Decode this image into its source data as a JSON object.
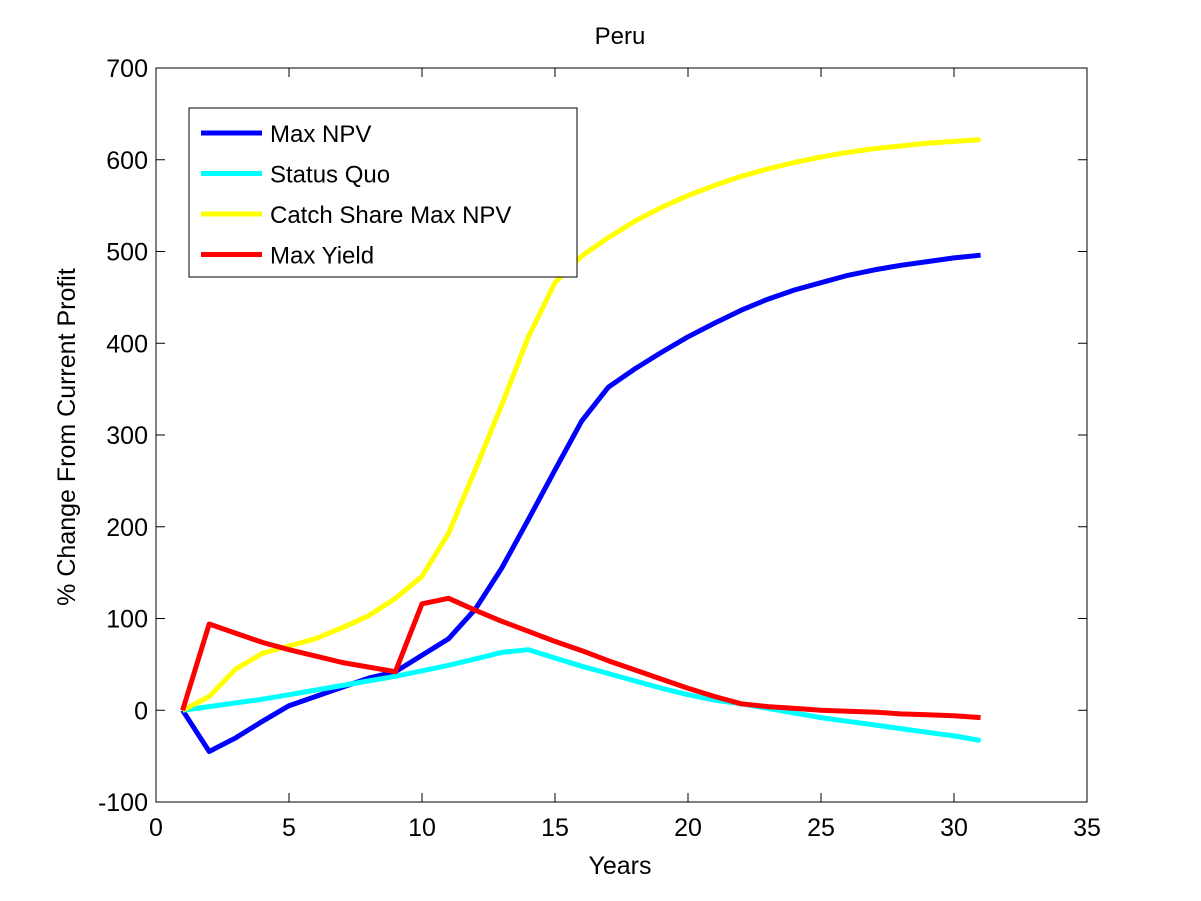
{
  "chart_data": {
    "type": "line",
    "title": "Peru",
    "xlabel": "Years",
    "ylabel": "% Change From Current Profit",
    "xlim": [
      0,
      35
    ],
    "ylim": [
      -100,
      700
    ],
    "xticks": [
      0,
      5,
      10,
      15,
      20,
      25,
      30,
      35
    ],
    "yticks": [
      -100,
      0,
      100,
      200,
      300,
      400,
      500,
      600,
      700
    ],
    "grid": false,
    "legend_position": "top-left",
    "series": [
      {
        "name": "Max NPV",
        "color": "#0000ff",
        "x": [
          1,
          2,
          3,
          4,
          5,
          6,
          7,
          8,
          9,
          10,
          11,
          12,
          13,
          14,
          15,
          16,
          17,
          18,
          19,
          20,
          21,
          22,
          23,
          24,
          25,
          26,
          27,
          28,
          29,
          30,
          31
        ],
        "y": [
          0,
          -45,
          -30,
          -12,
          5,
          15,
          25,
          35,
          42,
          60,
          78,
          110,
          155,
          208,
          262,
          315,
          352,
          372,
          390,
          407,
          422,
          436,
          448,
          458,
          466,
          474,
          480,
          485,
          489,
          493,
          496
        ]
      },
      {
        "name": "Status Quo",
        "color": "#00ffff",
        "x": [
          1,
          2,
          3,
          4,
          5,
          6,
          7,
          8,
          9,
          10,
          11,
          12,
          13,
          14,
          15,
          16,
          17,
          18,
          19,
          20,
          21,
          22,
          23,
          24,
          25,
          26,
          27,
          28,
          29,
          30,
          31
        ],
        "y": [
          0,
          4,
          8,
          12,
          17,
          22,
          27,
          32,
          37,
          43,
          49,
          56,
          63,
          66,
          57,
          48,
          40,
          32,
          24,
          17,
          11,
          7,
          2,
          -3,
          -8,
          -12,
          -16,
          -20,
          -24,
          -28,
          -33
        ]
      },
      {
        "name": "Catch Share Max NPV",
        "color": "#ffff00",
        "x": [
          1,
          2,
          3,
          4,
          5,
          6,
          7,
          8,
          9,
          10,
          11,
          12,
          13,
          14,
          15,
          16,
          17,
          18,
          19,
          20,
          21,
          22,
          23,
          24,
          25,
          26,
          27,
          28,
          29,
          30,
          31
        ],
        "y": [
          0,
          15,
          45,
          62,
          70,
          78,
          90,
          103,
          122,
          146,
          193,
          262,
          333,
          407,
          466,
          495,
          515,
          533,
          548,
          561,
          572,
          582,
          590,
          597,
          603,
          608,
          612,
          615,
          618,
          620,
          622
        ]
      },
      {
        "name": "Max Yield",
        "color": "#ff0000",
        "x": [
          1,
          2,
          3,
          4,
          5,
          6,
          7,
          8,
          9,
          10,
          11,
          12,
          13,
          14,
          15,
          16,
          17,
          18,
          19,
          20,
          21,
          22,
          23,
          24,
          25,
          26,
          27,
          28,
          29,
          30,
          31
        ],
        "y": [
          0,
          94,
          84,
          74,
          66,
          59,
          52,
          47,
          42,
          116,
          122,
          109,
          97,
          86,
          75,
          65,
          54,
          44,
          34,
          24,
          15,
          7,
          4,
          2,
          0,
          -1,
          -2,
          -4,
          -5,
          -6,
          -8
        ]
      }
    ]
  }
}
